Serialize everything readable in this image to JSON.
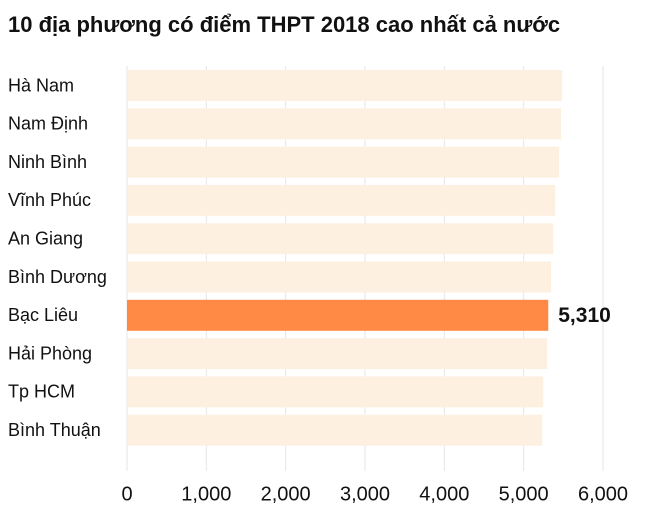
{
  "chart_data": {
    "type": "barh",
    "title": "10 địa phương có điểm THPT 2018 cao nhất cả nước",
    "categories": [
      "Hà Nam",
      "Nam Định",
      "Ninh Bình",
      "Vĩnh Phúc",
      "An Giang",
      "Bình Dương",
      "Bạc Liêu",
      "Hải Phòng",
      "Tp HCM",
      "Bình Thuận"
    ],
    "values": [
      5485,
      5472,
      5447,
      5397,
      5372,
      5346,
      5310,
      5296,
      5246,
      5233
    ],
    "value_labels": [
      null,
      null,
      null,
      null,
      null,
      null,
      "5,310",
      null,
      null,
      null
    ],
    "colors": [
      "#fdf0e1",
      "#fdf0e1",
      "#fdf0e1",
      "#fdf0e1",
      "#fdf0e1",
      "#fdf0e1",
      "#ff8a45",
      "#fdf0e1",
      "#fdf0e1",
      "#fdf0e1"
    ],
    "xlim": [
      0,
      6000
    ],
    "xticks": [
      0,
      {
        "value": 1000,
        "label": "1,000"
      },
      {
        "value": 2000,
        "label": "2,000"
      },
      {
        "value": 3000,
        "label": "3,000"
      },
      {
        "value": 4000,
        "label": "4,000"
      },
      {
        "value": 5000,
        "label": "5,000"
      },
      {
        "value": 6000,
        "label": "6,000"
      }
    ],
    "grid": true
  }
}
